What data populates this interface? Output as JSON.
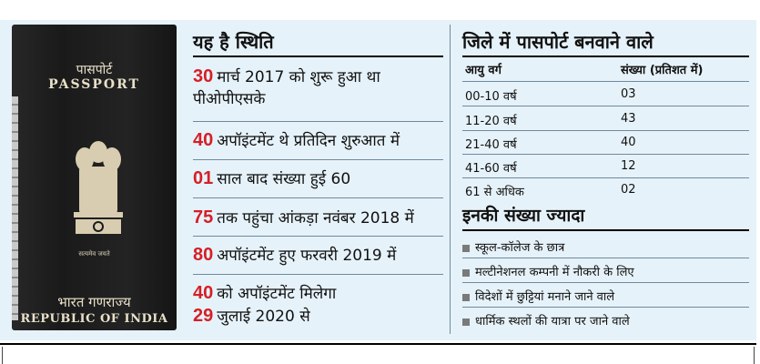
{
  "passport": {
    "title_hi": "पासपोर्ट",
    "title_en": "PASSPORT",
    "motto": "सत्यमेव जयते",
    "country_hi": "भारत गणराज्य",
    "country_en": "REPUBLIC OF INDIA"
  },
  "status": {
    "heading": "यह है स्थिति",
    "items": [
      {
        "num": "30",
        "text": "मार्च 2017 को शुरू हुआ था",
        "text2": "पीओपीएसके"
      },
      {
        "num": "40",
        "text": "अपॉइंटमेंट थे प्रतिदिन शुरुआत में"
      },
      {
        "num": "01",
        "text": "साल बाद संख्या हुई 60"
      },
      {
        "num": "75",
        "text": "तक पहुंचा आंकड़ा नवंबर 2018 में"
      },
      {
        "num": "80",
        "text": "अपॉइंटमेंट हुए फरवरी 2019 में"
      },
      {
        "num": "40",
        "text": "को अपॉइंटमेंट मिलेगा"
      },
      {
        "num": "29",
        "text": "जुलाई 2020 से"
      }
    ]
  },
  "district": {
    "heading": "जिले में पासपोर्ट बनवाने वाले",
    "col_age": "आयु वर्ग",
    "col_count": "संख्या (प्रतिशत में)",
    "rows": [
      {
        "age": "00-10 वर्ष",
        "count": "03"
      },
      {
        "age": "11-20 वर्ष",
        "count": "43"
      },
      {
        "age": "21-40 वर्ष",
        "count": "40"
      },
      {
        "age": "41-60 वर्ष",
        "count": "12"
      },
      {
        "age": "61 से अधिक",
        "count": "02"
      }
    ]
  },
  "majority": {
    "heading": "इनकी संख्या ज्यादा",
    "items": [
      "स्कूल-कॉलेज के छात्र",
      "मल्टीनेशनल कम्पनी में नौकरी के लिए",
      "विदेशों में छुट्टियां मनाने जाने वाले",
      "धार्मिक स्थलों की यात्रा पर जाने वाले"
    ]
  }
}
